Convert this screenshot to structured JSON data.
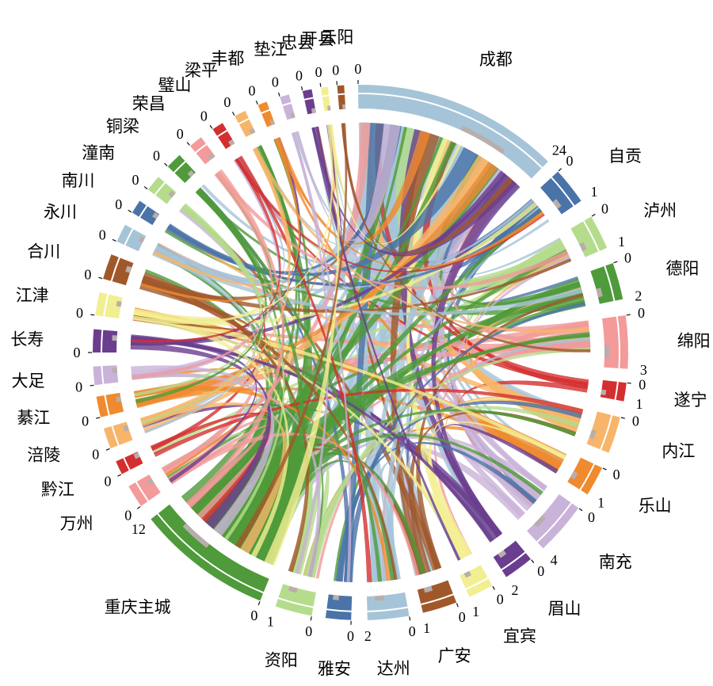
{
  "chart_data": {
    "type": "chord",
    "segments": [
      {
        "name": "成都",
        "color": "#a6c4d8",
        "start_tick": "0",
        "end_tick": "24"
      },
      {
        "name": "自贡",
        "color": "#4a73a8",
        "start_tick": "0",
        "end_tick": "1"
      },
      {
        "name": "泸州",
        "color": "#b5dc8c",
        "start_tick": "0",
        "end_tick": "1"
      },
      {
        "name": "德阳",
        "color": "#4f9a3a",
        "start_tick": "0",
        "end_tick": "2"
      },
      {
        "name": "绵阳",
        "color": "#f39a9a",
        "start_tick": "0",
        "end_tick": "3"
      },
      {
        "name": "遂宁",
        "color": "#d42f2f",
        "start_tick": "0",
        "end_tick": "1"
      },
      {
        "name": "内江",
        "color": "#f7b56a",
        "start_tick": "0",
        "end_tick": ""
      },
      {
        "name": "乐山",
        "color": "#f08a2e",
        "start_tick": "0",
        "end_tick": "1"
      },
      {
        "name": "南充",
        "color": "#c9b3d8",
        "start_tick": "0",
        "end_tick": "4"
      },
      {
        "name": "眉山",
        "color": "#6a3d8f",
        "start_tick": "0",
        "end_tick": "2"
      },
      {
        "name": "宜宾",
        "color": "#f2ef92",
        "start_tick": "0",
        "end_tick": "1"
      },
      {
        "name": "广安",
        "color": "#a0582b",
        "start_tick": "0",
        "end_tick": "1"
      },
      {
        "name": "达州",
        "color": "#a6c4d8",
        "start_tick": "0",
        "end_tick": "2"
      },
      {
        "name": "雅安",
        "color": "#4a73a8",
        "start_tick": "0",
        "end_tick": ""
      },
      {
        "name": "资阳",
        "color": "#b5dc8c",
        "start_tick": "0",
        "end_tick": "1"
      },
      {
        "name": "重庆主城",
        "color": "#4f9a3a",
        "start_tick": "0",
        "end_tick": "12"
      },
      {
        "name": "万州",
        "color": "#f39a9a",
        "start_tick": "0",
        "end_tick": ""
      },
      {
        "name": "黔江",
        "color": "#d42f2f",
        "start_tick": "0",
        "end_tick": ""
      },
      {
        "name": "涪陵",
        "color": "#f7b56a",
        "start_tick": "0",
        "end_tick": ""
      },
      {
        "name": "綦江",
        "color": "#f08a2e",
        "start_tick": "0",
        "end_tick": ""
      },
      {
        "name": "大足",
        "color": "#c9b3d8",
        "start_tick": "0",
        "end_tick": ""
      },
      {
        "name": "长寿",
        "color": "#6a3d8f",
        "start_tick": "0",
        "end_tick": ""
      },
      {
        "name": "江津",
        "color": "#f2ef92",
        "start_tick": "0",
        "end_tick": ""
      },
      {
        "name": "合川",
        "color": "#a0582b",
        "start_tick": "0",
        "end_tick": ""
      },
      {
        "name": "永川",
        "color": "#a6c4d8",
        "start_tick": "0",
        "end_tick": ""
      },
      {
        "name": "南川",
        "color": "#4a73a8",
        "start_tick": "0",
        "end_tick": ""
      },
      {
        "name": "潼南",
        "color": "#b5dc8c",
        "start_tick": "0",
        "end_tick": ""
      },
      {
        "name": "铜梁",
        "color": "#4f9a3a",
        "start_tick": "0",
        "end_tick": ""
      },
      {
        "name": "荣昌",
        "color": "#f39a9a",
        "start_tick": "0",
        "end_tick": ""
      },
      {
        "name": "璧山",
        "color": "#d42f2f",
        "start_tick": "0",
        "end_tick": ""
      },
      {
        "name": "梁平",
        "color": "#f7b56a",
        "start_tick": "0",
        "end_tick": ""
      },
      {
        "name": "丰都",
        "color": "#f08a2e",
        "start_tick": "0",
        "end_tick": ""
      },
      {
        "name": "垫江",
        "color": "#c9b3d8",
        "start_tick": "0",
        "end_tick": ""
      },
      {
        "name": "忠县",
        "color": "#6a3d8f",
        "start_tick": "0",
        "end_tick": ""
      },
      {
        "name": "开县",
        "color": "#f2ef92",
        "start_tick": "0",
        "end_tick": ""
      },
      {
        "name": "云阳",
        "color": "#a0582b",
        "start_tick": "0",
        "end_tick": ""
      }
    ],
    "secondary_bar_color": "#b8aeac",
    "tick_color": "#111111"
  }
}
